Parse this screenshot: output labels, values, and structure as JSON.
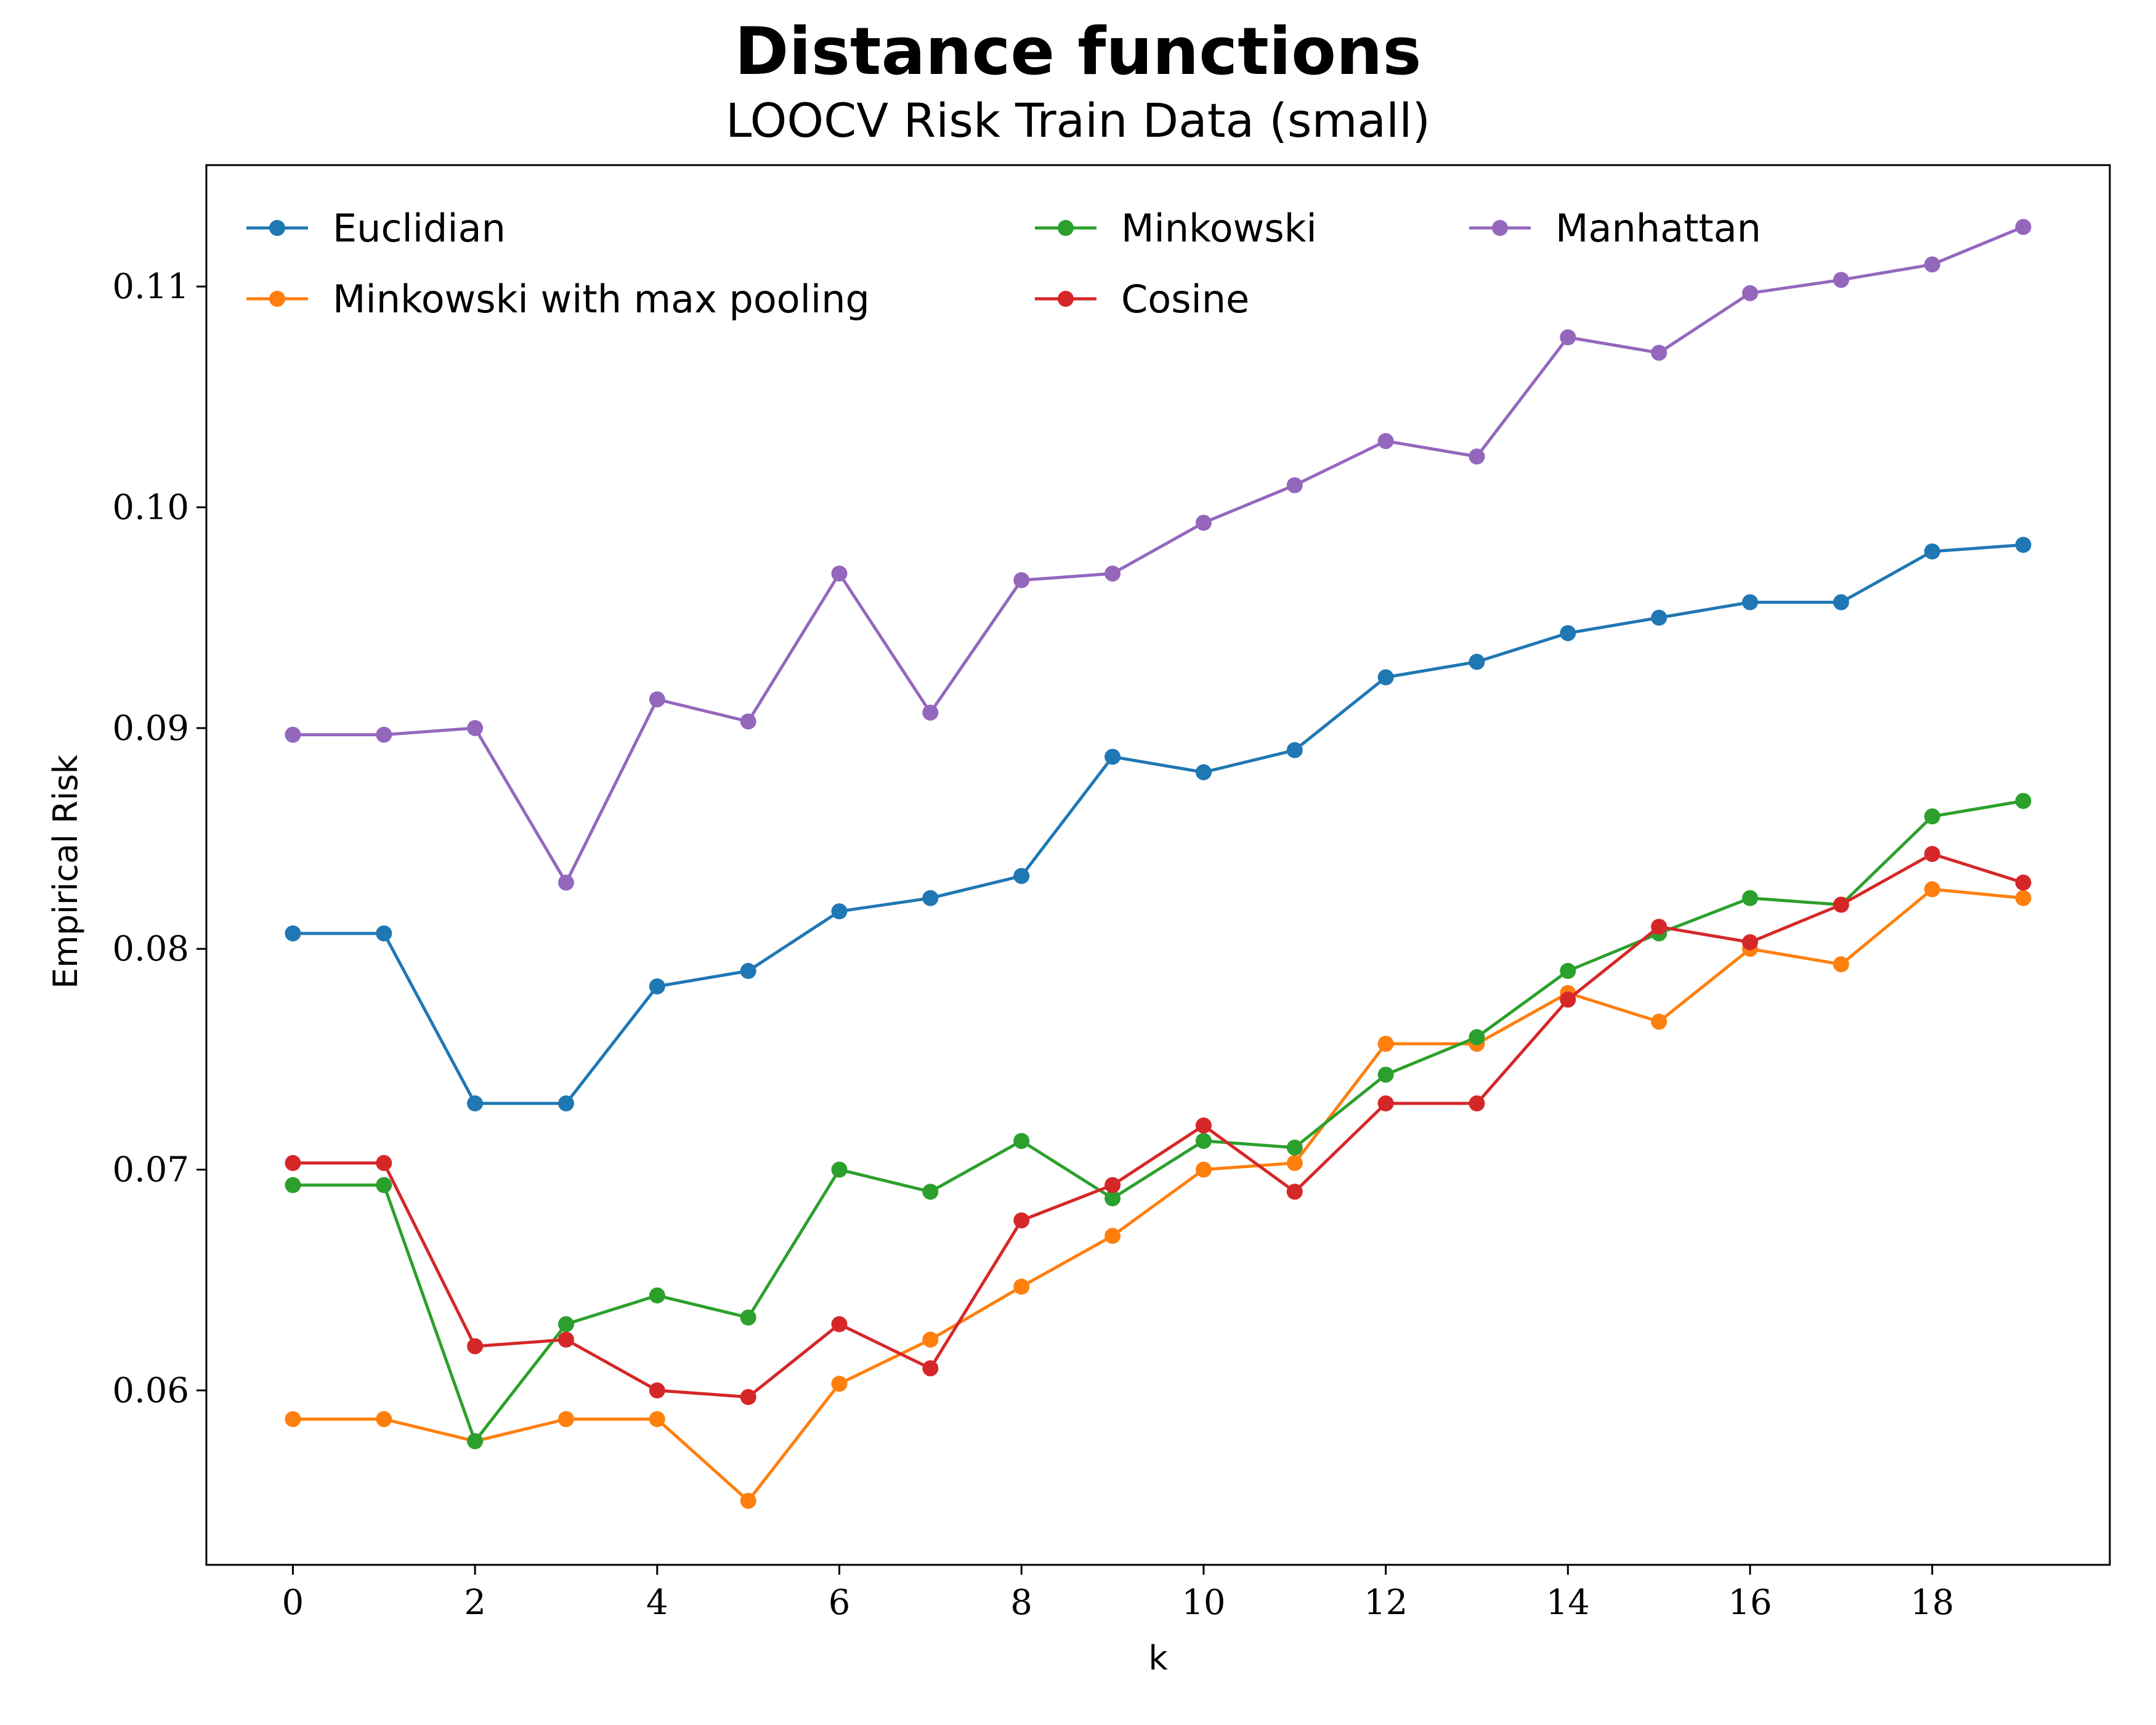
{
  "chart_data": {
    "type": "line",
    "title": "Distance functions",
    "subtitle": "LOOCV Risk Train Data (small)",
    "xlabel": "k",
    "ylabel": "Empirical Risk",
    "x": [
      0,
      1,
      2,
      3,
      4,
      5,
      6,
      7,
      8,
      9,
      10,
      11,
      12,
      13,
      14,
      15,
      16,
      17,
      18,
      19
    ],
    "xlim": [
      -0.95,
      19.95
    ],
    "ylim": [
      0.0521,
      0.1155
    ],
    "xticks": [
      0,
      2,
      4,
      6,
      8,
      10,
      12,
      14,
      16,
      18
    ],
    "xtick_labels": [
      "0",
      "2",
      "4",
      "6",
      "8",
      "10",
      "12",
      "14",
      "16",
      "18"
    ],
    "yticks": [
      0.06,
      0.07,
      0.08,
      0.09,
      0.1,
      0.11
    ],
    "ytick_labels": [
      "0.06",
      "0.07",
      "0.08",
      "0.09",
      "0.10",
      "0.11"
    ],
    "grid": false,
    "legend_placement": "top",
    "series": [
      {
        "name": "Euclidian",
        "color": "#1f77b4",
        "values": [
          0.0807,
          0.0807,
          0.073,
          0.073,
          0.0783,
          0.079,
          0.0817,
          0.0823,
          0.0833,
          0.0887,
          0.088,
          0.089,
          0.0923,
          0.093,
          0.0943,
          0.095,
          0.0957,
          0.0957,
          0.098,
          0.0983
        ]
      },
      {
        "name": "Minkowski with max pooling",
        "color": "#ff7f0e",
        "values": [
          0.0587,
          0.0587,
          0.0577,
          0.0587,
          0.0587,
          0.055,
          0.0603,
          0.0623,
          0.0647,
          0.067,
          0.07,
          0.0703,
          0.0757,
          0.0757,
          0.078,
          0.0767,
          0.08,
          0.0793,
          0.0827,
          0.0823
        ]
      },
      {
        "name": "Minkowski",
        "color": "#2ca02c",
        "values": [
          0.0693,
          0.0693,
          0.0577,
          0.063,
          0.0643,
          0.0633,
          0.07,
          0.069,
          0.0713,
          0.0687,
          0.0713,
          0.071,
          0.0743,
          0.076,
          0.079,
          0.0807,
          0.0823,
          0.082,
          0.086,
          0.0867
        ]
      },
      {
        "name": "Cosine",
        "color": "#d62728",
        "values": [
          0.0703,
          0.0703,
          0.062,
          0.0623,
          0.06,
          0.0597,
          0.063,
          0.061,
          0.0677,
          0.0693,
          0.072,
          0.069,
          0.073,
          0.073,
          0.0777,
          0.081,
          0.0803,
          0.082,
          0.0843,
          0.083
        ]
      },
      {
        "name": "Manhattan",
        "color": "#9467bd",
        "values": [
          0.0897,
          0.0897,
          0.09,
          0.083,
          0.0913,
          0.0903,
          0.097,
          0.0907,
          0.0967,
          0.097,
          0.0993,
          0.101,
          0.103,
          0.1023,
          0.1077,
          0.107,
          0.1097,
          0.1103,
          0.111,
          0.1127
        ]
      }
    ],
    "legend_order": [
      0,
      2,
      4,
      1,
      3
    ]
  }
}
